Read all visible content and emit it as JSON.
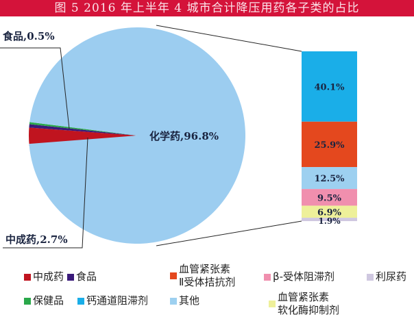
{
  "title": "图 5   2016 年上半年 4 城市合计降压用药各子类的占比",
  "chart_data": {
    "type": "pie",
    "title": "图 5   2016 年上半年 4 城市合计降压用药各子类的占比",
    "pie": [
      {
        "name": "中成药",
        "value": 2.7,
        "label": "中成药,2.7%",
        "color": "#c0141f"
      },
      {
        "name": "食品",
        "value": 0.5,
        "label": "食品,0.5%",
        "color": "#3a1a7a"
      },
      {
        "name": "保健品",
        "value": null,
        "label": "",
        "color": "#2aa84a"
      },
      {
        "name": "化学药",
        "value": 96.8,
        "label": "化学药,96.8%",
        "color": "#9ccdf0"
      }
    ],
    "breakdown_of": "化学药",
    "stacked_bar": [
      {
        "name": "钙通道阻滞剂",
        "value": 40.1,
        "label": "40.1%",
        "color": "#1aaee8"
      },
      {
        "name": "血管紧张素Ⅱ受体拮抗剂",
        "value": 25.9,
        "label": "25.9%",
        "color": "#e4481e"
      },
      {
        "name": "其他",
        "value": 12.5,
        "label": "12.5%",
        "color": "#9dd0f0"
      },
      {
        "name": "β-受体阻滞剂",
        "value": 9.5,
        "label": "9.5%",
        "color": "#f08fae"
      },
      {
        "name": "血管紧张素软化酶抑制剂",
        "value": 6.9,
        "label": "6.9%",
        "color": "#eef09a"
      },
      {
        "name": "利尿药",
        "value": 1.9,
        "label": "1.9%",
        "color": "#cfc8e0"
      }
    ],
    "legend": [
      {
        "lines": [
          "中成药"
        ],
        "color": "#c0141f"
      },
      {
        "lines": [
          "食品"
        ],
        "color": "#3a1a7a"
      },
      {
        "lines": [
          "血管紧张素",
          "Ⅱ受体拮抗剂"
        ],
        "color": "#e4481e"
      },
      {
        "lines": [
          "β-受体阻滞剂"
        ],
        "color": "#f08fae"
      },
      {
        "lines": [
          "利尿药"
        ],
        "color": "#cfc8e0"
      },
      {
        "lines": [
          "保健品"
        ],
        "color": "#2aa84a"
      },
      {
        "lines": [
          "钙通道阻滞剂"
        ],
        "color": "#1aaee8"
      },
      {
        "lines": [
          "其他"
        ],
        "color": "#9dd0f0"
      },
      {
        "lines": [
          "血管紧张素",
          "软化酶抑制剂"
        ],
        "color": "#eef09a"
      }
    ],
    "legend_placement": "bottom"
  }
}
